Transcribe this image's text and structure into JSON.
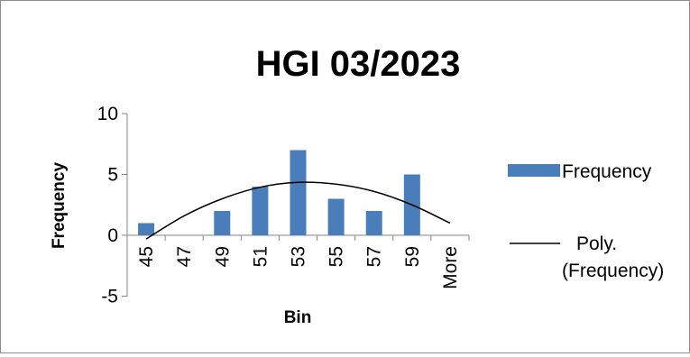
{
  "chart_data": {
    "type": "bar",
    "title": "HGI 03/2023",
    "xlabel": "Bin",
    "ylabel": "Frequency",
    "categories": [
      "45",
      "47",
      "49",
      "51",
      "53",
      "55",
      "57",
      "59",
      "More"
    ],
    "series": [
      {
        "name": "Frequency",
        "values": [
          1,
          0,
          2,
          4,
          7,
          3,
          2,
          5,
          0
        ],
        "color": "#4a7ebb"
      }
    ],
    "trendline": {
      "type": "polynomial",
      "label_line1": "Poly.",
      "label_line2": "(Frequency)",
      "color": "#000000",
      "points": [
        {
          "x": "45",
          "y": -0.3
        },
        {
          "x": "47",
          "y": 1.6
        },
        {
          "x": "49",
          "y": 3.0
        },
        {
          "x": "51",
          "y": 3.95
        },
        {
          "x": "53",
          "y": 4.35
        },
        {
          "x": "55",
          "y": 4.2
        },
        {
          "x": "57",
          "y": 3.6
        },
        {
          "x": "59",
          "y": 2.5
        },
        {
          "x": "More",
          "y": 1.0
        }
      ]
    },
    "ylim": [
      -5,
      10
    ],
    "yticks": [
      -5,
      0,
      5,
      10
    ],
    "grid": false,
    "legend_position": "right"
  }
}
